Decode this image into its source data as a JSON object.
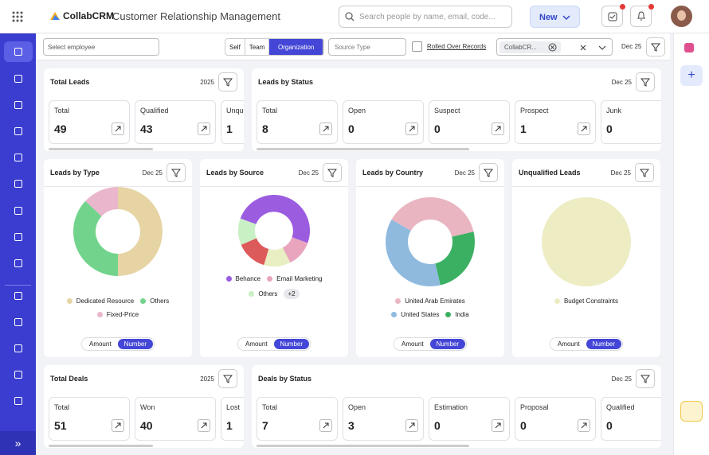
{
  "header": {
    "brand": "CollabCRM",
    "subtitle": "Customer Relationship Management",
    "search_placeholder": "Search people by name, email, code...",
    "new_button": "New"
  },
  "filters": {
    "employee_placeholder": "Select employee",
    "scope": [
      "Self",
      "Team",
      "Organization"
    ],
    "source_type": "Source Type",
    "rolled_over": "Rolled Over Records",
    "chip": "CollabCR...",
    "period": "Dec 25"
  },
  "stat_cards": [
    {
      "title": "Total Leads",
      "period": "2025",
      "tiles": [
        {
          "label": "Total",
          "value": "49"
        },
        {
          "label": "Qualified",
          "value": "43"
        },
        {
          "label": "Unqualified",
          "value": "1"
        }
      ]
    },
    {
      "title": "Leads by Status",
      "period": "Dec 25",
      "tiles": [
        {
          "label": "Total",
          "value": "8"
        },
        {
          "label": "Open",
          "value": "0"
        },
        {
          "label": "Suspect",
          "value": "0"
        },
        {
          "label": "Prospect",
          "value": "1"
        },
        {
          "label": "Junk",
          "value": "0"
        }
      ]
    },
    {
      "title": "Total Deals",
      "period": "2025",
      "tiles": [
        {
          "label": "Total",
          "value": "51"
        },
        {
          "label": "Won",
          "value": "40"
        },
        {
          "label": "Lost",
          "value": "1"
        }
      ]
    },
    {
      "title": "Deals by Status",
      "period": "Dec 25",
      "tiles": [
        {
          "label": "Total",
          "value": "7"
        },
        {
          "label": "Open",
          "value": "3"
        },
        {
          "label": "Estimation",
          "value": "0"
        },
        {
          "label": "Proposal",
          "value": "0"
        },
        {
          "label": "Qualified",
          "value": "0"
        }
      ]
    }
  ],
  "donut_cards": [
    {
      "type": "donut",
      "title": "Leads by Type",
      "period": "Dec 25",
      "segments": [
        {
          "name": "Dedicated Resource",
          "color": "#e6d4a4",
          "value": 50
        },
        {
          "name": "Others",
          "color": "#72d48c",
          "value": 37
        },
        {
          "name": "Fixed-Price",
          "color": "#eab6cc",
          "value": 13
        }
      ],
      "toggle": [
        "Amount",
        "Number"
      ]
    },
    {
      "type": "donut",
      "title": "Leads by Source",
      "period": "Dec 25",
      "segments": [
        {
          "name": "Email Marketing",
          "color": "#e8a5bd",
          "value": 12
        },
        {
          "color": "#e9efc2",
          "value": 12
        },
        {
          "color": "#dd5a5a",
          "value": 14
        },
        {
          "name": "Others",
          "color": "#c9efc4",
          "value": 12
        },
        {
          "name": "Behance",
          "color": "#9b5ce0",
          "value": 50
        }
      ],
      "more": "+2",
      "toggle": [
        "Amount",
        "Number"
      ]
    },
    {
      "type": "donut",
      "title": "Leads by Country",
      "period": "Dec 25",
      "segments": [
        {
          "name": "United Arab Emirates",
          "color": "#e9b5c1",
          "value": 38
        },
        {
          "name": "India",
          "color": "#3bb063",
          "value": 25
        },
        {
          "name": "United States",
          "color": "#8fbade",
          "value": 37
        }
      ],
      "toggle": [
        "Amount",
        "Number"
      ]
    },
    {
      "type": "donut",
      "title": "Unqualified Leads",
      "period": "Dec 25",
      "segments": [
        {
          "name": "Budget Constraints",
          "color": "#edecc3",
          "value": 100
        }
      ],
      "toggle": [
        "Amount",
        "Number"
      ]
    }
  ]
}
